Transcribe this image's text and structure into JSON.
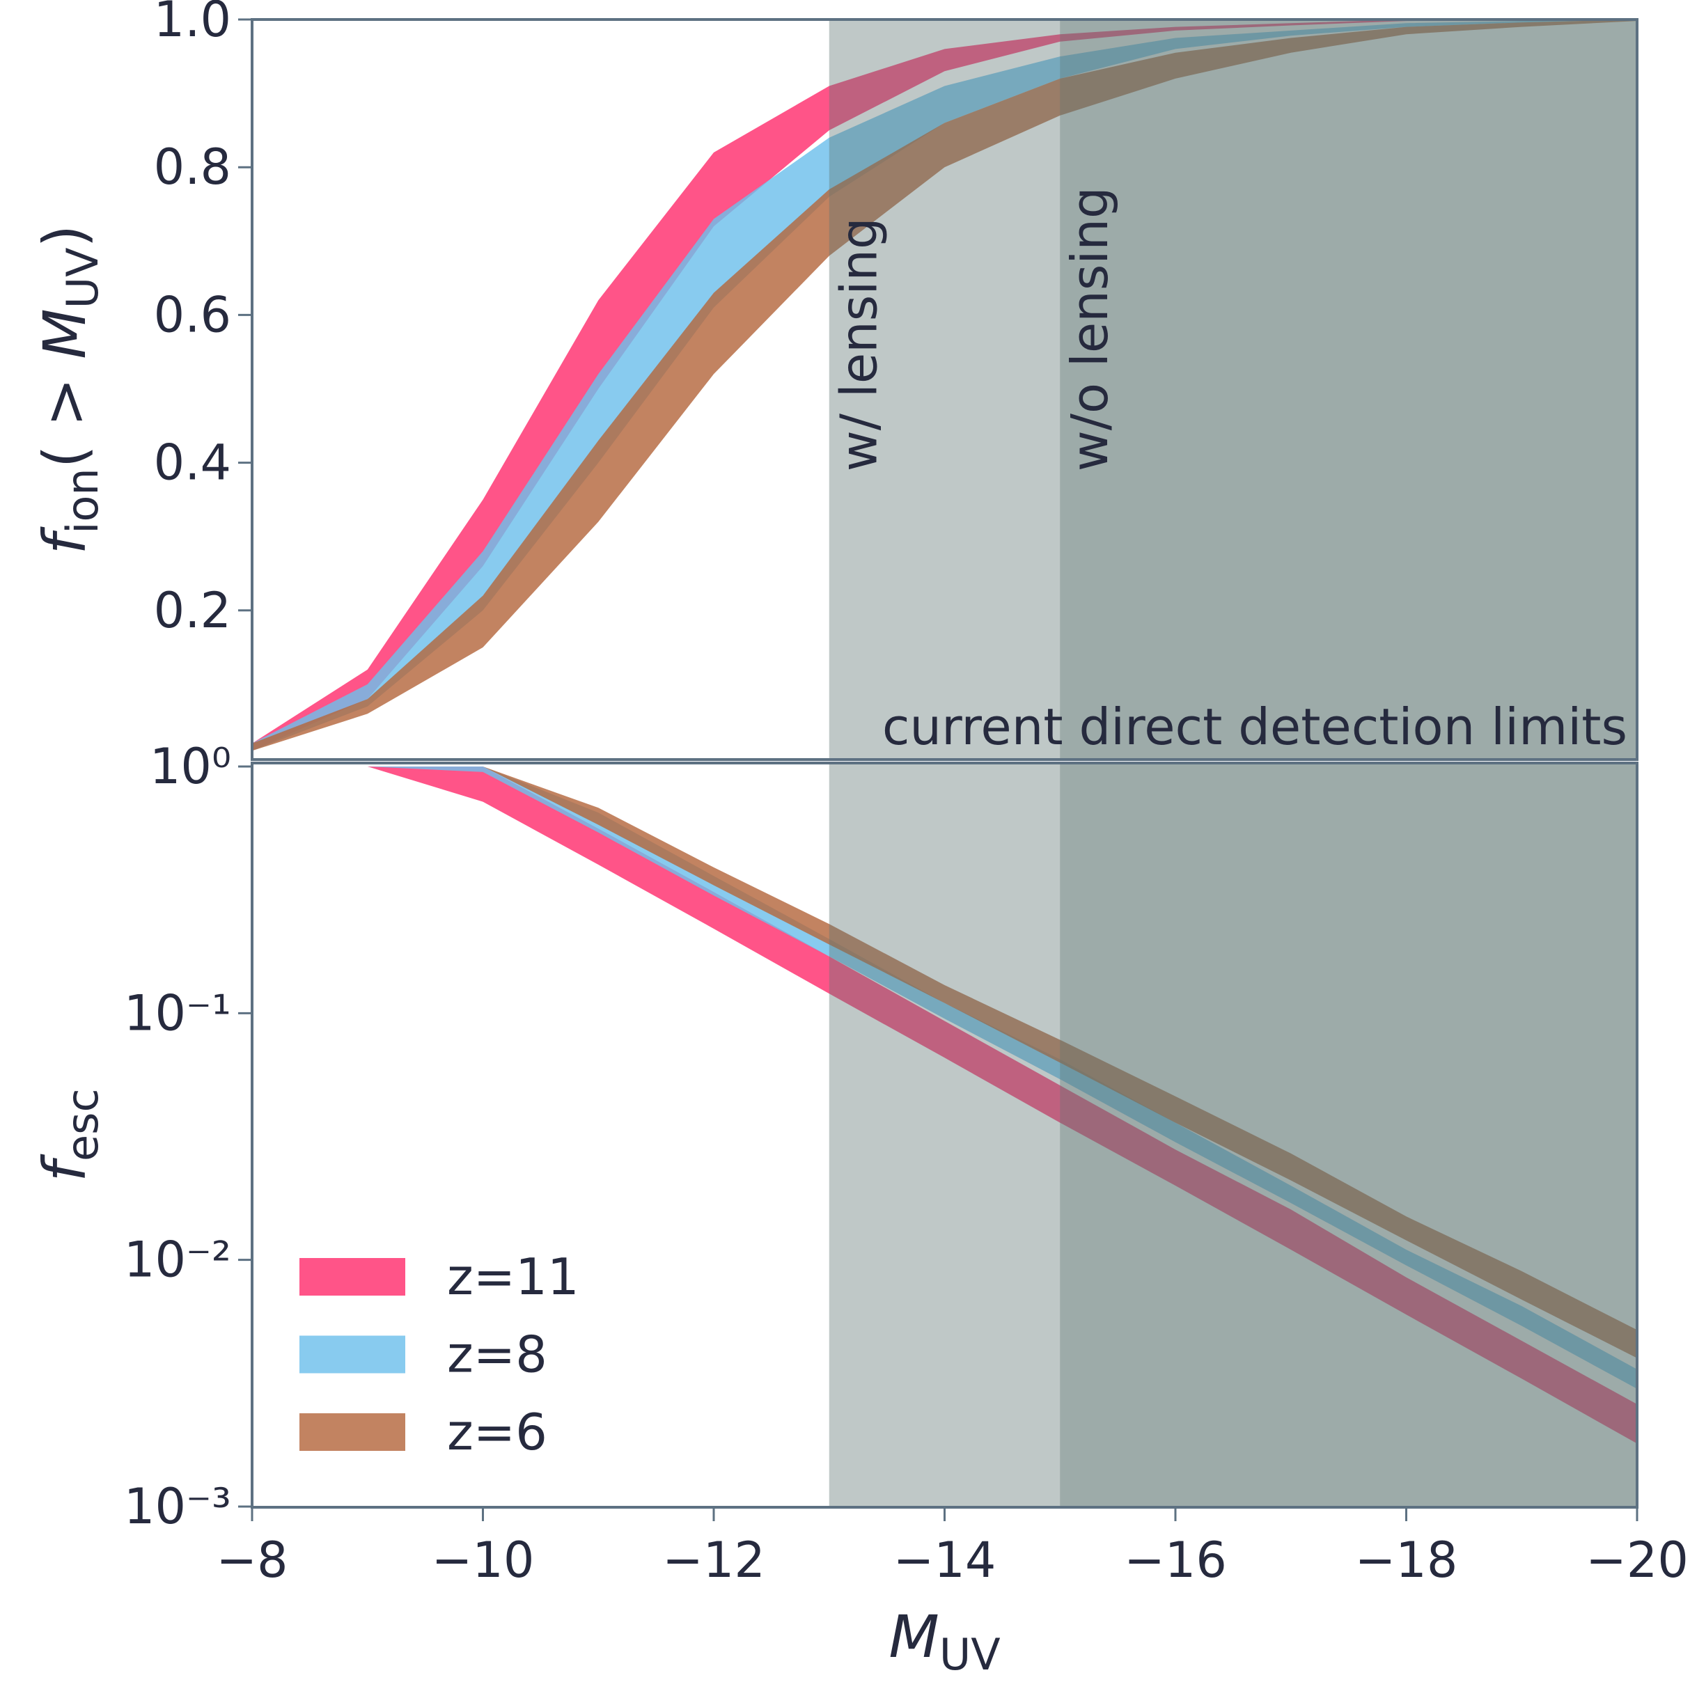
{
  "chart_data": [
    {
      "type": "band",
      "ylabel": [
        "f",
        "ion",
        "( > ",
        "M",
        "UV",
        ")"
      ],
      "x": [
        -8,
        -9,
        -10,
        -11,
        -12,
        -13,
        -14,
        -15,
        -16,
        -17,
        -18,
        -19,
        -20
      ],
      "xlim": [
        -8,
        -20
      ],
      "ylim": [
        0,
        1
      ],
      "yticks": [
        0.2,
        0.4,
        0.6,
        0.8,
        {
          "value": 1.0,
          "label": "1.0"
        }
      ],
      "series": [
        {
          "color": "#ff2e6e",
          "lower": [
            0.01,
            0.08,
            0.26,
            0.5,
            0.72,
            0.85,
            0.93,
            0.97,
            0.985,
            0.992,
            0.998,
            0.999,
            1.0
          ],
          "upper": [
            0.02,
            0.12,
            0.35,
            0.62,
            0.82,
            0.91,
            0.96,
            0.98,
            0.99,
            0.995,
            1.0,
            1.0,
            1.0
          ]
        },
        {
          "color": "#6ec0ec",
          "lower": [
            0.01,
            0.07,
            0.2,
            0.4,
            0.61,
            0.76,
            0.86,
            0.92,
            0.96,
            0.978,
            0.99,
            0.996,
            1.0
          ],
          "upper": [
            0.02,
            0.1,
            0.28,
            0.52,
            0.73,
            0.84,
            0.91,
            0.95,
            0.975,
            0.985,
            0.995,
            0.998,
            1.0
          ]
        },
        {
          "color": "#b5683e",
          "lower": [
            0.01,
            0.06,
            0.15,
            0.32,
            0.52,
            0.68,
            0.8,
            0.87,
            0.92,
            0.955,
            0.98,
            0.99,
            0.998
          ],
          "upper": [
            0.02,
            0.08,
            0.22,
            0.43,
            0.63,
            0.77,
            0.86,
            0.92,
            0.955,
            0.975,
            0.99,
            0.996,
            1.0
          ]
        }
      ],
      "shaded_regions": [
        {
          "xlim": [
            -13,
            -20
          ],
          "label": "w/ lensing",
          "color": "#5f7572"
        },
        {
          "xlim": [
            -15,
            -20
          ],
          "label": "w/o lensing",
          "color": "#5f7572"
        }
      ],
      "annotation": "current direct detection limits"
    },
    {
      "type": "band",
      "xlabel": [
        "M",
        "UV"
      ],
      "ylabel": [
        "f",
        "esc"
      ],
      "x": [
        -8,
        -9,
        -10,
        -11,
        -12,
        -13,
        -14,
        -15,
        -16,
        -17,
        -18,
        -19,
        -20
      ],
      "xlim": [
        -8,
        -20
      ],
      "xticks": [
        {
          "value": -8,
          "label": "−8"
        },
        {
          "value": -10,
          "label": "−10"
        },
        {
          "value": -12,
          "label": "−12"
        },
        {
          "value": -14,
          "label": "−14"
        },
        {
          "value": -16,
          "label": "−16"
        },
        {
          "value": -18,
          "label": "−18"
        },
        {
          "value": -20,
          "label": "−20"
        }
      ],
      "ylim": [
        0.001,
        1
      ],
      "log_y": true,
      "yticks": [
        {
          "value": 1,
          "label": "10⁰"
        },
        {
          "value": 0.1,
          "label": "10⁻¹"
        },
        {
          "value": 0.01,
          "label": "10⁻²"
        },
        {
          "value": 0.001,
          "label": "10⁻³"
        }
      ],
      "legend": "lower left",
      "series": [
        {
          "name": "z=11",
          "color": "#ff2e6e",
          "lower": [
            1,
            1,
            0.72,
            0.4,
            0.22,
            0.12,
            0.066,
            0.036,
            0.02,
            0.011,
            0.006,
            0.0033,
            0.0018
          ],
          "upper": [
            1,
            1,
            1,
            0.56,
            0.31,
            0.17,
            0.093,
            0.051,
            0.028,
            0.016,
            0.0085,
            0.0047,
            0.0026
          ]
        },
        {
          "name": "z=8",
          "color": "#6ec0ec",
          "lower": [
            1,
            1,
            0.95,
            0.54,
            0.3,
            0.17,
            0.095,
            0.054,
            0.03,
            0.017,
            0.0095,
            0.0054,
            0.003
          ],
          "upper": [
            1,
            1,
            1,
            0.65,
            0.36,
            0.2,
            0.11,
            0.065,
            0.036,
            0.02,
            0.011,
            0.0065,
            0.0036
          ]
        },
        {
          "name": "z=6",
          "color": "#b5683e",
          "lower": [
            1,
            1,
            1,
            0.58,
            0.33,
            0.19,
            0.11,
            0.063,
            0.036,
            0.021,
            0.012,
            0.0069,
            0.004
          ],
          "upper": [
            1,
            1,
            1,
            0.68,
            0.39,
            0.23,
            0.13,
            0.078,
            0.046,
            0.027,
            0.015,
            0.009,
            0.0052
          ]
        }
      ],
      "shaded_regions": [
        {
          "xlim": [
            -13,
            -20
          ],
          "color": "#5f7572"
        },
        {
          "xlim": [
            -15,
            -20
          ],
          "color": "#5f7572"
        }
      ]
    }
  ]
}
